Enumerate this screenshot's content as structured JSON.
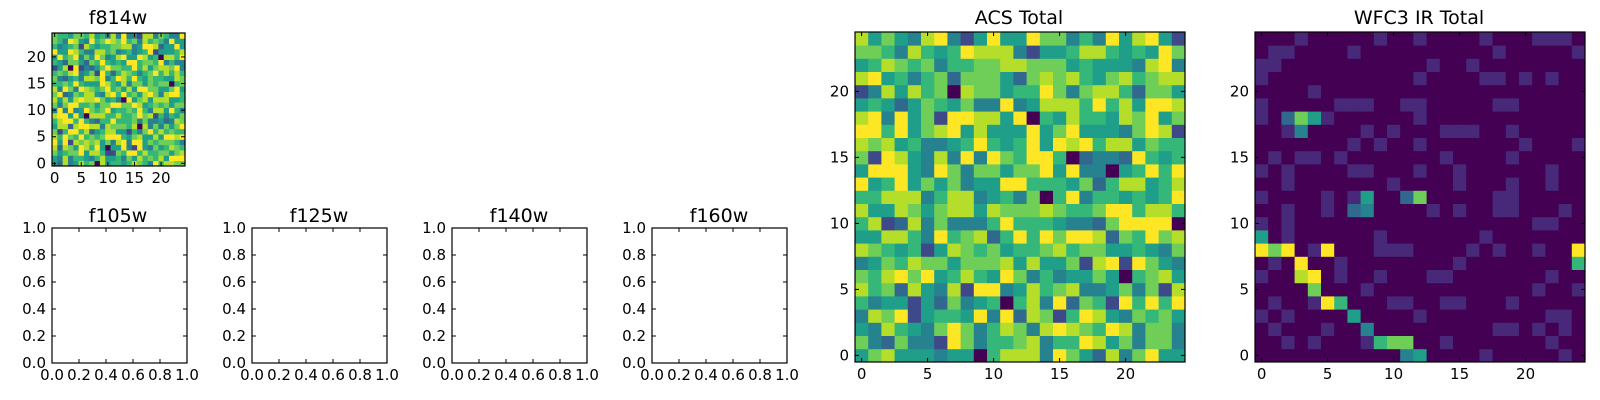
{
  "colormap": [
    "#440154",
    "#482878",
    "#3e4989",
    "#31688e",
    "#26828e",
    "#1f9e89",
    "#35b779",
    "#6ece58",
    "#b5de2b",
    "#fde725"
  ],
  "chart_data": [
    {
      "type": "heatmap",
      "title": "f814w",
      "grid_size": 25,
      "xlim": [
        0,
        25
      ],
      "ylim": [
        0,
        25
      ],
      "xticks": [
        "0",
        "5",
        "10",
        "15",
        "20"
      ],
      "yticks": [
        "0",
        "5",
        "10",
        "15",
        "20"
      ],
      "seed": 11,
      "style": "acs",
      "hot_cells": [
        [
          8,
          0
        ],
        [
          20,
          20
        ],
        [
          13,
          12
        ],
        [
          3,
          18
        ],
        [
          16,
          7
        ],
        [
          10,
          3
        ],
        [
          22,
          15
        ],
        [
          6,
          9
        ]
      ]
    },
    {
      "type": "heatmap",
      "title": "ACS Total",
      "grid_size": 25,
      "xlim": [
        0,
        25
      ],
      "ylim": [
        0,
        25
      ],
      "xticks": [
        "0",
        "5",
        "10",
        "15",
        "20"
      ],
      "yticks": [
        "0",
        "5",
        "10",
        "15",
        "20"
      ],
      "seed": 23,
      "style": "acs",
      "hot_cells": [
        [
          9,
          0
        ],
        [
          14,
          12
        ],
        [
          19,
          14
        ],
        [
          7,
          20
        ],
        [
          20,
          6
        ],
        [
          13,
          18
        ],
        [
          24,
          10
        ],
        [
          11,
          4
        ],
        [
          16,
          15
        ]
      ]
    },
    {
      "type": "heatmap",
      "title": "WFC3 IR Total",
      "grid_size": 25,
      "xlim": [
        0,
        25
      ],
      "ylim": [
        0,
        25
      ],
      "xticks": [
        "0",
        "5",
        "10",
        "15",
        "20"
      ],
      "yticks": [
        "0",
        "5",
        "10",
        "15",
        "20"
      ],
      "seed": 37,
      "style": "ir",
      "bright_cells": [
        [
          0,
          9,
          0.55
        ],
        [
          0,
          8,
          0.9
        ],
        [
          1,
          8,
          0.75
        ],
        [
          2,
          8,
          0.95
        ],
        [
          3,
          7,
          1.0
        ],
        [
          3,
          6,
          0.85
        ],
        [
          4,
          6,
          1.0
        ],
        [
          4,
          5,
          0.7
        ],
        [
          5,
          4,
          0.95
        ],
        [
          5,
          8,
          0.9
        ],
        [
          6,
          4,
          0.6
        ],
        [
          7,
          3,
          0.55
        ],
        [
          8,
          2,
          0.45
        ],
        [
          9,
          1,
          0.6
        ],
        [
          10,
          1,
          0.7
        ],
        [
          11,
          1,
          0.75
        ],
        [
          11,
          0,
          0.45
        ],
        [
          12,
          0,
          0.55
        ],
        [
          8,
          11,
          0.45
        ],
        [
          7,
          11,
          0.35
        ],
        [
          8,
          12,
          0.55
        ],
        [
          12,
          12,
          0.7
        ],
        [
          11,
          12,
          0.35
        ],
        [
          3,
          18,
          0.75
        ],
        [
          4,
          18,
          0.5
        ],
        [
          3,
          17,
          0.4
        ],
        [
          2,
          18,
          0.3
        ],
        [
          24,
          7,
          0.65
        ],
        [
          24,
          8,
          0.9
        ]
      ]
    }
  ],
  "empty_axes": [
    {
      "title": "f105w",
      "xticks": [
        "0.0",
        "0.2",
        "0.4",
        "0.6",
        "0.8",
        "1.0"
      ],
      "yticks": [
        "0.0",
        "0.2",
        "0.4",
        "0.6",
        "0.8",
        "1.0"
      ]
    },
    {
      "title": "f125w",
      "xticks": [
        "0.0",
        "0.2",
        "0.4",
        "0.6",
        "0.8",
        "1.0"
      ],
      "yticks": [
        "0.0",
        "0.2",
        "0.4",
        "0.6",
        "0.8",
        "1.0"
      ]
    },
    {
      "title": "f140w",
      "xticks": [
        "0.0",
        "0.2",
        "0.4",
        "0.6",
        "0.8",
        "1.0"
      ],
      "yticks": [
        "0.0",
        "0.2",
        "0.4",
        "0.6",
        "0.8",
        "1.0"
      ]
    },
    {
      "title": "f160w",
      "xticks": [
        "0.0",
        "0.2",
        "0.4",
        "0.6",
        "0.8",
        "1.0"
      ],
      "yticks": [
        "0.0",
        "0.2",
        "0.4",
        "0.6",
        "0.8",
        "1.0"
      ]
    }
  ]
}
